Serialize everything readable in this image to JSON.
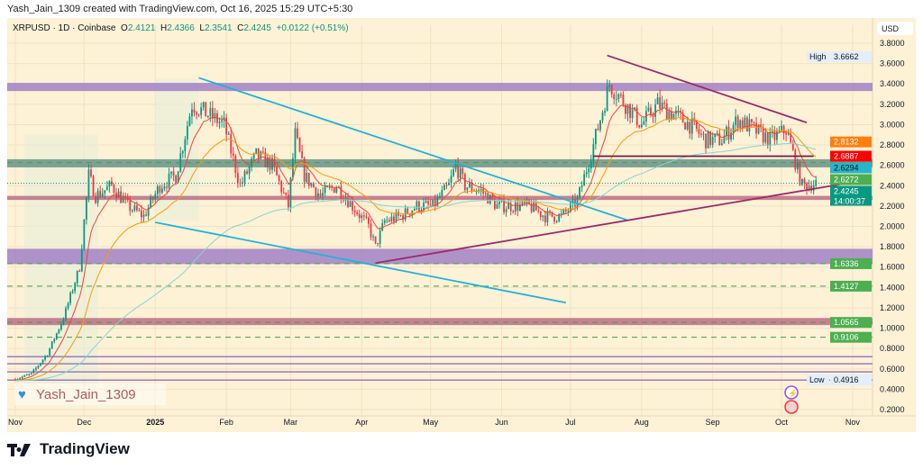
{
  "credit": "Yash_Jain_1309 created with TradingView.com, Oct 16, 2025 15:29 UTC+5:30",
  "header": {
    "symbol": "XRPUSD · 1D · Coinbase",
    "o_label": "O",
    "o": "2.4121",
    "h_label": "H",
    "h": "2.4366",
    "l_label": "L",
    "l": "2.3541",
    "c_label": "C",
    "c": "2.4245",
    "change": "+0.0122 (+0.51%)"
  },
  "watermark": "Yash_Jain_1309",
  "brand": "TradingView",
  "chart_data": {
    "type": "candlestick",
    "symbol": "XRPUSD",
    "interval": "1D",
    "exchange": "Coinbase",
    "currency": "USD",
    "ylim": [
      0.2,
      3.8
    ],
    "y_ticks": [
      "3.8000",
      "3.6000",
      "3.4000",
      "3.2000",
      "3.0000",
      "2.8000",
      "2.6000",
      "2.4000",
      "2.2000",
      "2.0000",
      "1.8000",
      "1.6000",
      "1.4000",
      "1.2000",
      "1.0000",
      "0.8000",
      "0.6000",
      "0.4000",
      "0.2000"
    ],
    "x_ticks": [
      {
        "label": "Nov",
        "date": "2024-11-01"
      },
      {
        "label": "Dec",
        "date": "2024-12-01"
      },
      {
        "label": "2025",
        "date": "2025-01-01"
      },
      {
        "label": "Feb",
        "date": "2025-02-01"
      },
      {
        "label": "Mar",
        "date": "2025-03-01"
      },
      {
        "label": "Apr",
        "date": "2025-04-01"
      },
      {
        "label": "May",
        "date": "2025-05-01"
      },
      {
        "label": "Jun",
        "date": "2025-06-01"
      },
      {
        "label": "Jul",
        "date": "2025-07-01"
      },
      {
        "label": "Aug",
        "date": "2025-08-01"
      },
      {
        "label": "Sep",
        "date": "2025-09-01"
      },
      {
        "label": "Oct",
        "date": "2025-10-01"
      },
      {
        "label": "Nov",
        "date": "2025-11-01"
      }
    ],
    "closes": [
      [
        "2024-11-01",
        0.5
      ],
      [
        "2024-11-08",
        0.55
      ],
      [
        "2024-11-15",
        0.75
      ],
      [
        "2024-11-22",
        1.1
      ],
      [
        "2024-11-29",
        1.6
      ],
      [
        "2024-12-03",
        2.5
      ],
      [
        "2024-12-06",
        2.3
      ],
      [
        "2024-12-13",
        2.4
      ],
      [
        "2024-12-20",
        2.2
      ],
      [
        "2024-12-27",
        2.1
      ],
      [
        "2025-01-03",
        2.4
      ],
      [
        "2025-01-10",
        2.5
      ],
      [
        "2025-01-17",
        3.2
      ],
      [
        "2025-01-24",
        3.1
      ],
      [
        "2025-01-31",
        3.0
      ],
      [
        "2025-02-07",
        2.4
      ],
      [
        "2025-02-14",
        2.7
      ],
      [
        "2025-02-21",
        2.6
      ],
      [
        "2025-02-28",
        2.2
      ],
      [
        "2025-03-03",
        2.9
      ],
      [
        "2025-03-07",
        2.5
      ],
      [
        "2025-03-14",
        2.3
      ],
      [
        "2025-03-21",
        2.4
      ],
      [
        "2025-03-28",
        2.2
      ],
      [
        "2025-04-04",
        2.0
      ],
      [
        "2025-04-07",
        1.8
      ],
      [
        "2025-04-11",
        2.05
      ],
      [
        "2025-04-18",
        2.1
      ],
      [
        "2025-04-25",
        2.2
      ],
      [
        "2025-05-02",
        2.2
      ],
      [
        "2025-05-09",
        2.4
      ],
      [
        "2025-05-12",
        2.6
      ],
      [
        "2025-05-16",
        2.4
      ],
      [
        "2025-05-23",
        2.35
      ],
      [
        "2025-05-30",
        2.2
      ],
      [
        "2025-06-06",
        2.2
      ],
      [
        "2025-06-13",
        2.2
      ],
      [
        "2025-06-20",
        2.1
      ],
      [
        "2025-06-27",
        2.1
      ],
      [
        "2025-07-04",
        2.25
      ],
      [
        "2025-07-11",
        2.8
      ],
      [
        "2025-07-18",
        3.4
      ],
      [
        "2025-07-25",
        3.2
      ],
      [
        "2025-08-01",
        3.0
      ],
      [
        "2025-08-08",
        3.2
      ],
      [
        "2025-08-15",
        3.1
      ],
      [
        "2025-08-22",
        3.0
      ],
      [
        "2025-08-29",
        2.85
      ],
      [
        "2025-09-05",
        2.85
      ],
      [
        "2025-09-12",
        3.05
      ],
      [
        "2025-09-19",
        2.95
      ],
      [
        "2025-09-26",
        2.85
      ],
      [
        "2025-10-03",
        2.95
      ],
      [
        "2025-10-10",
        2.4
      ],
      [
        "2025-10-16",
        2.4245
      ]
    ],
    "price_labels": [
      {
        "text": "3.6662",
        "tag": "High",
        "color": "#e3eefb",
        "fg": "#131722",
        "price": 3.6662
      },
      {
        "text": "2.8132",
        "color": "#ff7f0e",
        "fg": "#fff",
        "price": 2.83
      },
      {
        "text": "2.6887",
        "color": "#f00",
        "fg": "#fff",
        "price": 2.69
      },
      {
        "text": "2.6294",
        "color": "#26b5c9",
        "fg": "#131722",
        "price": 2.6294
      },
      {
        "text": "2.6272",
        "color": "#4caf50",
        "fg": "#fff",
        "price": 2.56
      },
      {
        "text": "2.4245",
        "sub": "14:00:37",
        "color": "#089981",
        "fg": "#fff",
        "price": 2.4245
      },
      {
        "text": "1.6336",
        "color": "#4caf50",
        "fg": "#fff",
        "price": 1.6336
      },
      {
        "text": "1.4127",
        "color": "#4caf50",
        "fg": "#fff",
        "price": 1.4127
      },
      {
        "text": "1.0565",
        "color": "#4caf50",
        "fg": "#fff",
        "price": 1.0565
      },
      {
        "text": "0.9106",
        "color": "#4caf50",
        "fg": "#fff",
        "price": 0.9106
      },
      {
        "text": "0.4916",
        "tag": "Low",
        "color": "#e3eefb",
        "fg": "#131722",
        "price": 0.4916
      }
    ],
    "zones": [
      {
        "from": 3.33,
        "to": 3.41,
        "color": "#9b7bc4"
      },
      {
        "from": 2.58,
        "to": 2.66,
        "color": "#5f8f83"
      },
      {
        "from": 2.26,
        "to": 2.3,
        "color": "#b8677e"
      },
      {
        "from": 1.63,
        "to": 1.78,
        "color": "#9b7bc4"
      },
      {
        "from": 1.03,
        "to": 1.1,
        "color": "#b8677e"
      }
    ],
    "dashed_levels": [
      2.6272,
      1.6336,
      1.4127,
      1.0565,
      0.9106
    ],
    "thin_levels": [
      0.72,
      0.65,
      0.57,
      0.49
    ],
    "trendlines": [
      {
        "from": [
          "2025-01-20",
          3.46
        ],
        "to": [
          "2025-07-26",
          2.06
        ],
        "color": "#1fb3d9"
      },
      {
        "from": [
          "2025-01-01",
          2.04
        ],
        "to": [
          "2025-06-29",
          1.25
        ],
        "color": "#1fb3d9"
      },
      {
        "from": [
          "2025-07-17",
          3.68
        ],
        "to": [
          "2025-10-12",
          3.02
        ],
        "color": "#9c2a6b"
      },
      {
        "from": [
          "2025-04-07",
          1.64
        ],
        "to": [
          "2025-10-31",
          2.43
        ],
        "color": "#9c2a6b"
      },
      {
        "from": [
          "2025-07-11",
          2.69
        ],
        "to": [
          "2025-10-15",
          2.69
        ],
        "color": "#6b1f4a"
      }
    ],
    "moving_averages": [
      {
        "color": "#f44336"
      },
      {
        "color": "#ff9800"
      },
      {
        "color": "#80d8d0"
      }
    ],
    "colors": {
      "up": "#089981",
      "down": "#f23645",
      "background": "#fdf1d6"
    }
  }
}
